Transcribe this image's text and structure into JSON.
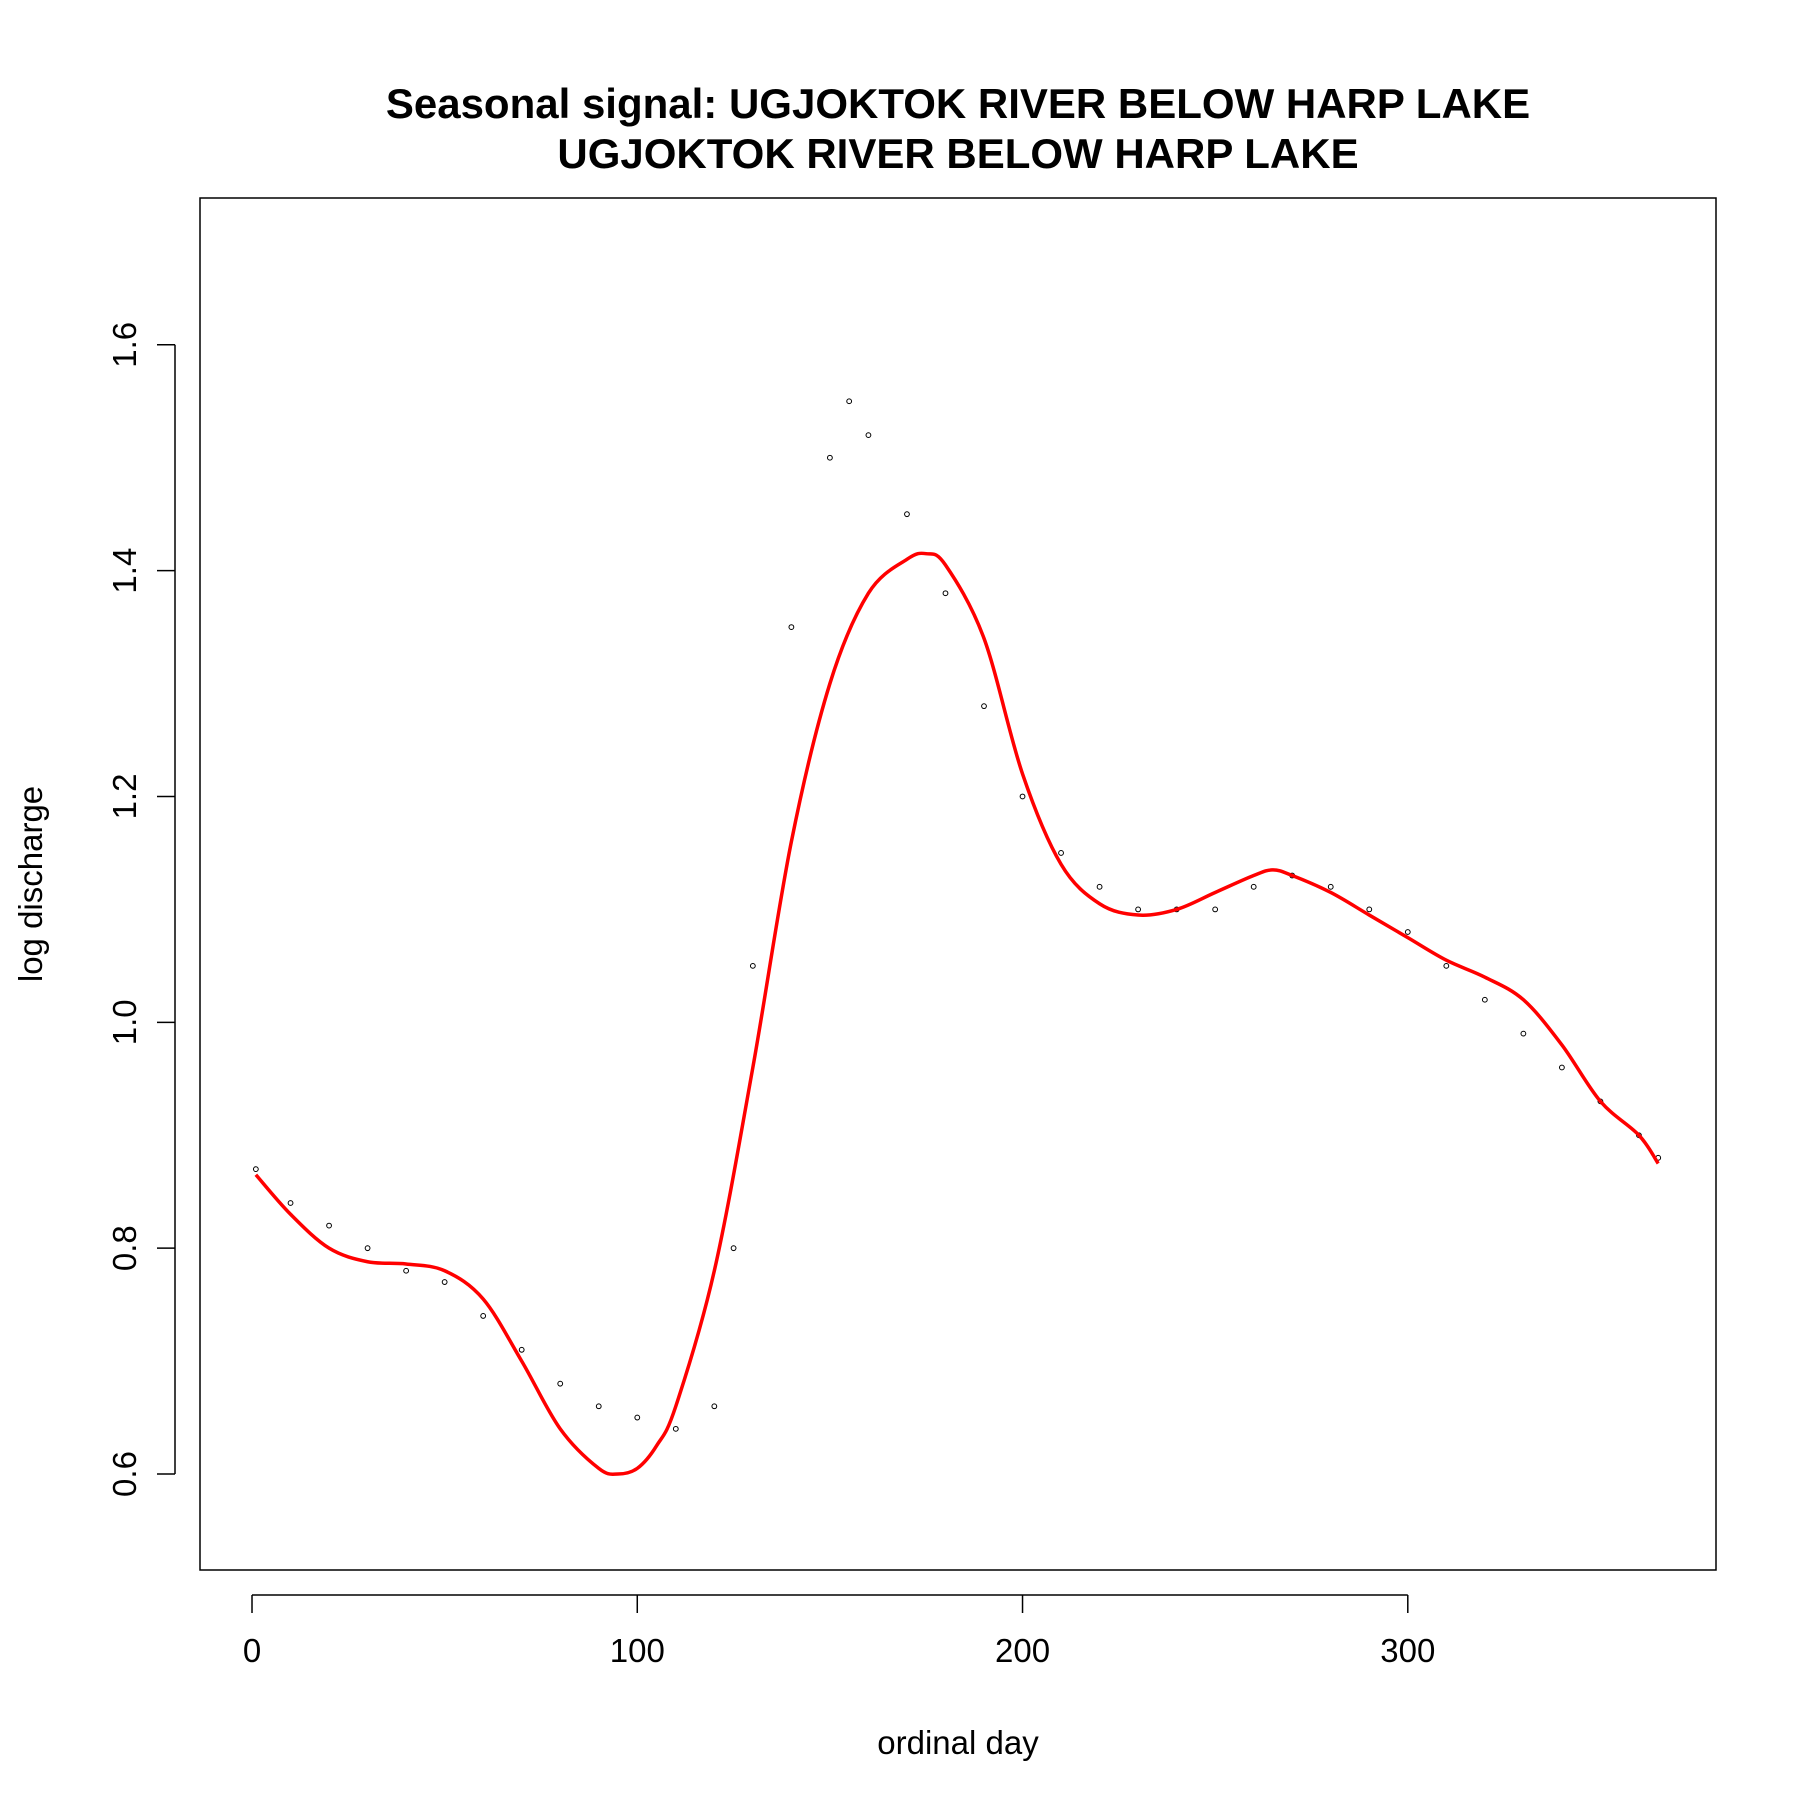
{
  "chart_data": {
    "type": "scatter",
    "title_lines": [
      "Seasonal signal: UGJOKTOK RIVER BELOW HARP LAKE",
      "UGJOKTOK RIVER BELOW HARP LAKE"
    ],
    "xlabel": "ordinal day",
    "ylabel": "log discharge",
    "xlim": [
      -13.5,
      380
    ],
    "ylim": [
      0.515,
      1.73
    ],
    "xticks": [
      0,
      100,
      200,
      300
    ],
    "yticks": [
      0.6,
      0.8,
      1.0,
      1.2,
      1.4,
      1.6
    ],
    "xtick_labels": [
      "0",
      "100",
      "200",
      "300"
    ],
    "ytick_labels": [
      "0.6",
      "0.8",
      "1.0",
      "1.2",
      "1.4",
      "1.6"
    ],
    "grid": false,
    "legend": "none",
    "colors": {
      "points": "#000000",
      "smooth": "#ff0000"
    },
    "series": [
      {
        "kind": "points",
        "description_of_marks": "daily observations, one trace per year",
        "x": [
          1,
          10,
          20,
          30,
          40,
          50,
          60,
          70,
          80,
          90,
          100,
          110,
          120,
          125,
          130,
          140,
          150,
          155,
          160,
          170,
          180,
          190,
          200,
          210,
          220,
          230,
          240,
          250,
          260,
          270,
          280,
          290,
          300,
          310,
          320,
          330,
          340,
          350,
          360,
          365
        ],
        "y": [
          0.87,
          0.84,
          0.82,
          0.8,
          0.78,
          0.77,
          0.74,
          0.71,
          0.68,
          0.66,
          0.65,
          0.64,
          0.66,
          0.8,
          1.05,
          1.35,
          1.5,
          1.55,
          1.52,
          1.45,
          1.38,
          1.28,
          1.2,
          1.15,
          1.12,
          1.1,
          1.1,
          1.1,
          1.12,
          1.13,
          1.12,
          1.1,
          1.08,
          1.05,
          1.02,
          0.99,
          0.96,
          0.93,
          0.9,
          0.88
        ]
      },
      {
        "kind": "smooth",
        "x": [
          1,
          10,
          20,
          30,
          40,
          50,
          60,
          70,
          80,
          90,
          95,
          100,
          105,
          110,
          120,
          130,
          140,
          150,
          160,
          170,
          175,
          180,
          190,
          200,
          210,
          220,
          230,
          240,
          250,
          260,
          265,
          270,
          280,
          290,
          300,
          310,
          320,
          330,
          340,
          350,
          360,
          365
        ],
        "y": [
          0.865,
          0.83,
          0.8,
          0.788,
          0.786,
          0.78,
          0.755,
          0.7,
          0.64,
          0.605,
          0.6,
          0.605,
          0.625,
          0.66,
          0.78,
          0.96,
          1.16,
          1.3,
          1.38,
          1.41,
          1.415,
          1.405,
          1.34,
          1.22,
          1.14,
          1.105,
          1.095,
          1.1,
          1.115,
          1.13,
          1.135,
          1.13,
          1.115,
          1.095,
          1.075,
          1.055,
          1.04,
          1.02,
          0.98,
          0.93,
          0.9,
          0.875
        ]
      }
    ]
  }
}
